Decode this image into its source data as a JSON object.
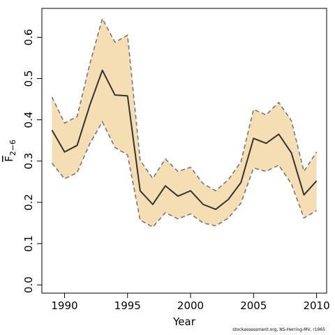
{
  "chart_data": {
    "type": "area",
    "xlabel": "Year",
    "ylabel_main": "F",
    "ylabel_sub": "2−6",
    "x": [
      1989,
      1990,
      1991,
      1992,
      1993,
      1994,
      1995,
      1996,
      1997,
      1998,
      1999,
      2000,
      2001,
      2002,
      2003,
      2004,
      2005,
      2006,
      2007,
      2008,
      2009,
      2010
    ],
    "series": [
      {
        "role": "estimate",
        "values": [
          0.375,
          0.322,
          0.338,
          0.435,
          0.52,
          0.46,
          0.458,
          0.228,
          0.195,
          0.24,
          0.215,
          0.228,
          0.195,
          0.183,
          0.207,
          0.248,
          0.355,
          0.343,
          0.365,
          0.32,
          0.218,
          0.252
        ]
      },
      {
        "role": "upper",
        "values": [
          0.455,
          0.392,
          0.408,
          0.535,
          0.645,
          0.588,
          0.605,
          0.302,
          0.258,
          0.305,
          0.275,
          0.285,
          0.245,
          0.228,
          0.255,
          0.298,
          0.425,
          0.412,
          0.442,
          0.398,
          0.275,
          0.322
        ]
      },
      {
        "role": "lower",
        "values": [
          0.295,
          0.257,
          0.272,
          0.342,
          0.395,
          0.333,
          0.315,
          0.157,
          0.14,
          0.175,
          0.16,
          0.172,
          0.15,
          0.143,
          0.162,
          0.198,
          0.283,
          0.275,
          0.29,
          0.245,
          0.162,
          0.18
        ]
      }
    ],
    "xlim": [
      1988.2,
      2010.8
    ],
    "ylim": [
      -0.02,
      0.67
    ],
    "xticks": [
      1990,
      1995,
      2000,
      2005,
      2010
    ],
    "yticks": [
      0.0,
      0.1,
      0.2,
      0.3,
      0.4,
      0.5,
      0.6
    ],
    "ytick_labels": [
      "0.0",
      "0.1",
      "0.2",
      "0.3",
      "0.4",
      "0.5",
      "0.6"
    ],
    "band_color": "#f5deb3",
    "band_edge_color": "#777777",
    "line_color": "#333333",
    "grid": false,
    "legend": "none"
  },
  "footer": "stockassessment.org, NS-Herring-MV, r1965"
}
